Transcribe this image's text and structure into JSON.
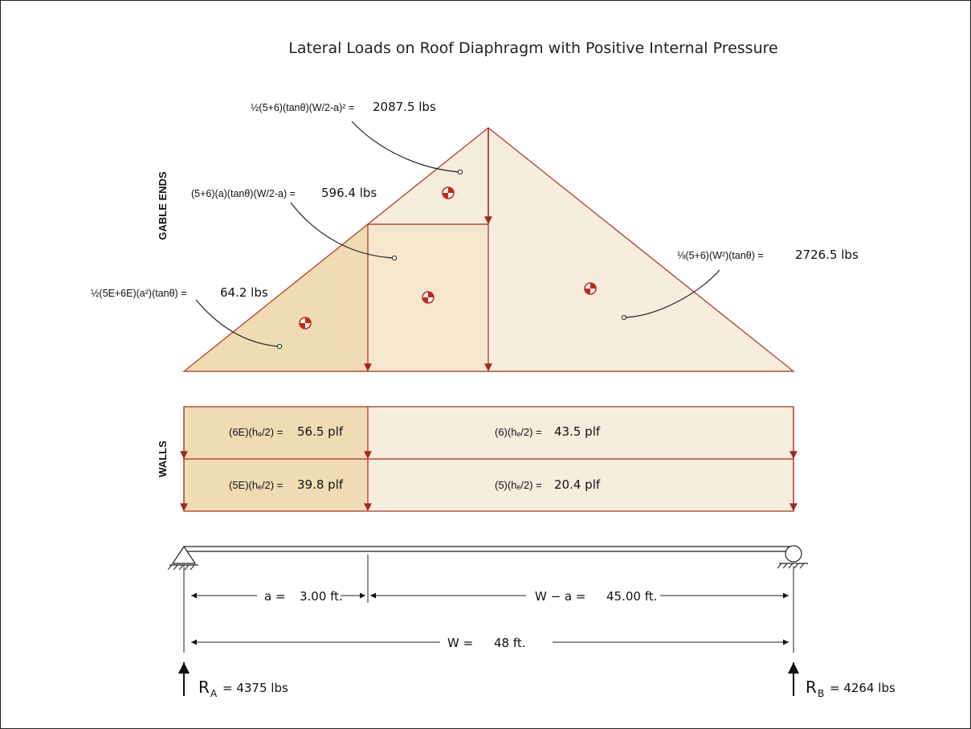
{
  "title": "Lateral Loads on Roof Diaphragm with Positive Internal Pressure",
  "section_labels": {
    "gable_ends": "GABLE ENDS",
    "walls": "WALLS"
  },
  "gable_loads": [
    {
      "formula": "½(5+6)(tanθ)(W/2-a)² =",
      "value": "2087.5 lbs"
    },
    {
      "formula": "(5+6)(a)(tanθ)(W/2-a) =",
      "value": "596.4 lbs"
    },
    {
      "formula": "½(5E+6E)(a²)(tanθ) =",
      "value": "64.2 lbs"
    },
    {
      "formula": "⅛(5+6)(W²)(tanθ) =",
      "value": "2726.5 lbs"
    }
  ],
  "wall_loads": [
    {
      "formula": "(6E)(hₑ/2) =",
      "value": "56.5 plf"
    },
    {
      "formula": "(6)(hₑ/2) =",
      "value": "43.5 plf"
    },
    {
      "formula": "(5E)(hₑ/2) =",
      "value": "39.8 plf"
    },
    {
      "formula": "(5)(hₑ/2) =",
      "value": "20.4 plf"
    }
  ],
  "dimensions": {
    "a_label": "a =",
    "a_value": "3.00 ft.",
    "wa_label": "W − a =",
    "wa_value": "45.00 ft.",
    "w_label": "W =",
    "w_value": "48 ft."
  },
  "reactions": {
    "ra_label": "R",
    "ra_sub": "A",
    "ra_value": "= 4375 lbs",
    "rb_label": "R",
    "rb_sub": "B",
    "rb_value": "= 4264 lbs"
  },
  "colors": {
    "outline": "#b24a3a",
    "arrow": "#a0281e",
    "fill_dark": "#f0dcb4",
    "fill_mid": "#f5e7cf",
    "fill_light": "#f7eddd",
    "centroid": "#c0271f"
  }
}
